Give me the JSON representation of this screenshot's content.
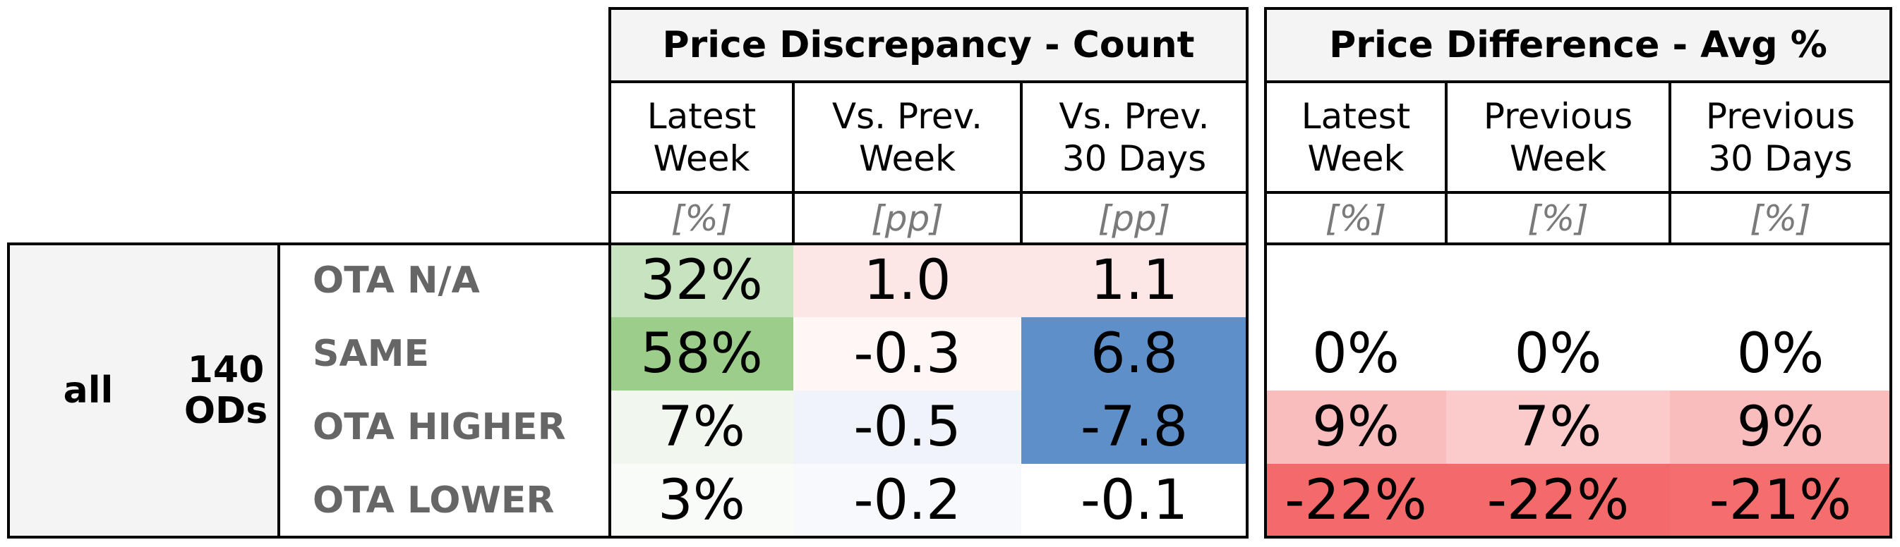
{
  "chart_data": {
    "type": "table",
    "groups": [
      {
        "title": "Price Discrepancy - Count",
        "columns": [
          {
            "label": "Latest\nWeek",
            "unit": "[%]"
          },
          {
            "label": "Vs. Prev.\nWeek",
            "unit": "[pp]"
          },
          {
            "label": "Vs. Prev.\n30 Days",
            "unit": "[pp]"
          }
        ]
      },
      {
        "title": "Price Difference - Avg %",
        "columns": [
          {
            "label": "Latest\nWeek",
            "unit": "[%]"
          },
          {
            "label": "Previous\nWeek",
            "unit": "[%]"
          },
          {
            "label": "Previous\n30 Days",
            "unit": "[%]"
          }
        ]
      }
    ],
    "segment": {
      "label": "all",
      "count": "140\nODs"
    },
    "rows": [
      {
        "status": "OTA N/A",
        "values": [
          "32%",
          "1.0",
          "1.1",
          "",
          "",
          ""
        ],
        "colors": [
          "#c8e3c0",
          "#fde6e6",
          "#fde6e6",
          "#ffffff",
          "#ffffff",
          "#ffffff"
        ]
      },
      {
        "status": "SAME",
        "values": [
          "58%",
          "-0.3",
          "6.8",
          "0%",
          "0%",
          "0%"
        ],
        "colors": [
          "#9ccd8a",
          "#fff6f6",
          "#5f8fc9",
          "#ffffff",
          "#ffffff",
          "#ffffff"
        ]
      },
      {
        "status": "OTA HIGHER",
        "values": [
          "7%",
          "-0.5",
          "-7.8",
          "9%",
          "7%",
          "9%"
        ],
        "colors": [
          "#f1f7ee",
          "#f0f4fa",
          "#5f8fc9",
          "#f9bdbd",
          "#fbcaca",
          "#f9bdbd"
        ]
      },
      {
        "status": "OTA LOWER",
        "values": [
          "3%",
          "-0.2",
          "-0.1",
          "-22%",
          "-22%",
          "-21%"
        ],
        "colors": [
          "#f8fbf7",
          "#f8f9fc",
          "#ffffff",
          "#f46a6a",
          "#f46a6a",
          "#f56e6e"
        ]
      }
    ]
  }
}
